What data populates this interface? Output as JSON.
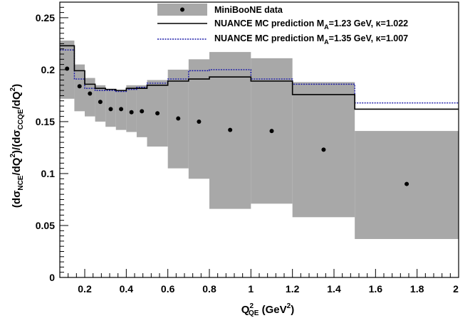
{
  "chart_data": {
    "type": "scatter",
    "title": "",
    "xlim": [
      0.08,
      2.0
    ],
    "ylim": [
      0,
      0.265
    ],
    "x_ticks": [
      "0.2",
      "0.4",
      "0.6",
      "0.8",
      "1",
      "1.2",
      "1.4",
      "1.6",
      "1.8",
      "2"
    ],
    "y_ticks": [
      "0",
      "0.05",
      "0.1",
      "0.15",
      "0.2",
      "0.25"
    ],
    "x_tick_values": [
      0.2,
      0.4,
      0.6,
      0.8,
      1.0,
      1.2,
      1.4,
      1.6,
      1.8,
      2.0
    ],
    "y_tick_values": [
      0,
      0.05,
      0.1,
      0.15,
      0.2,
      0.25
    ],
    "grid": false,
    "legend_position": "top-right",
    "colors": {
      "band": "#a8a8a8",
      "solid": "#000000",
      "dotted": "#1a1aa8"
    },
    "xlabel": {
      "main": "Q",
      "sup": "2",
      "sub": "QE",
      "rest": " (GeV",
      "sup2": "2",
      "end": ")"
    },
    "ylabel": {
      "p1": "(dσ",
      "s1": "NCE",
      "p2": "/dQ",
      "u1": "2",
      "p3": ")/(dσ",
      "s2": "CCQE",
      "p4": "/dQ",
      "u2": "2",
      "p5": ")"
    },
    "legend": {
      "data": "MiniBooNE data",
      "solid": {
        "prefix": "NUANCE MC prediction M",
        "sub": "A",
        "suffix": "=1.23 GeV, κ=1.022"
      },
      "dotted": {
        "prefix": "NUANCE MC prediction M",
        "sub": "A",
        "suffix": "=1.35 GeV, κ=1.007"
      }
    },
    "bins": [
      {
        "lo": 0.08,
        "hi": 0.15,
        "data": 0.201,
        "band_lo": 0.172,
        "band_hi": 0.228,
        "mc_solid": 0.223,
        "mc_dotted": 0.219
      },
      {
        "lo": 0.15,
        "hi": 0.2,
        "data": 0.184,
        "band_lo": 0.16,
        "band_hi": 0.205,
        "mc_solid": 0.199,
        "mc_dotted": 0.191
      },
      {
        "lo": 0.2,
        "hi": 0.25,
        "data": 0.177,
        "band_lo": 0.155,
        "band_hi": 0.192,
        "mc_solid": 0.186,
        "mc_dotted": 0.182
      },
      {
        "lo": 0.25,
        "hi": 0.3,
        "data": 0.169,
        "band_lo": 0.15,
        "band_hi": 0.185,
        "mc_solid": 0.182,
        "mc_dotted": 0.18
      },
      {
        "lo": 0.3,
        "hi": 0.35,
        "data": 0.162,
        "band_lo": 0.145,
        "band_hi": 0.18,
        "mc_solid": 0.181,
        "mc_dotted": 0.18
      },
      {
        "lo": 0.35,
        "hi": 0.4,
        "data": 0.162,
        "band_lo": 0.142,
        "band_hi": 0.18,
        "mc_solid": 0.18,
        "mc_dotted": 0.179
      },
      {
        "lo": 0.4,
        "hi": 0.45,
        "data": 0.159,
        "band_lo": 0.14,
        "band_hi": 0.185,
        "mc_solid": 0.182,
        "mc_dotted": 0.181
      },
      {
        "lo": 0.45,
        "hi": 0.5,
        "data": 0.16,
        "band_lo": 0.135,
        "band_hi": 0.185,
        "mc_solid": 0.182,
        "mc_dotted": 0.183
      },
      {
        "lo": 0.5,
        "hi": 0.6,
        "data": 0.158,
        "band_lo": 0.126,
        "band_hi": 0.19,
        "mc_solid": 0.185,
        "mc_dotted": 0.187
      },
      {
        "lo": 0.6,
        "hi": 0.7,
        "data": 0.153,
        "band_lo": 0.105,
        "band_hi": 0.2,
        "mc_solid": 0.189,
        "mc_dotted": 0.191
      },
      {
        "lo": 0.7,
        "hi": 0.8,
        "data": 0.15,
        "band_lo": 0.095,
        "band_hi": 0.21,
        "mc_solid": 0.191,
        "mc_dotted": 0.199
      },
      {
        "lo": 0.8,
        "hi": 1.0,
        "data": 0.142,
        "band_lo": 0.066,
        "band_hi": 0.217,
        "mc_solid": 0.193,
        "mc_dotted": 0.2
      },
      {
        "lo": 1.0,
        "hi": 1.2,
        "data": 0.141,
        "band_lo": 0.071,
        "band_hi": 0.211,
        "mc_solid": 0.189,
        "mc_dotted": 0.191
      },
      {
        "lo": 1.2,
        "hi": 1.5,
        "data": 0.123,
        "band_lo": 0.058,
        "band_hi": 0.188,
        "mc_solid": 0.176,
        "mc_dotted": 0.186
      },
      {
        "lo": 1.5,
        "hi": 2.0,
        "data": 0.09,
        "band_lo": 0.037,
        "band_hi": 0.141,
        "mc_solid": 0.162,
        "mc_dotted": 0.168
      }
    ]
  }
}
